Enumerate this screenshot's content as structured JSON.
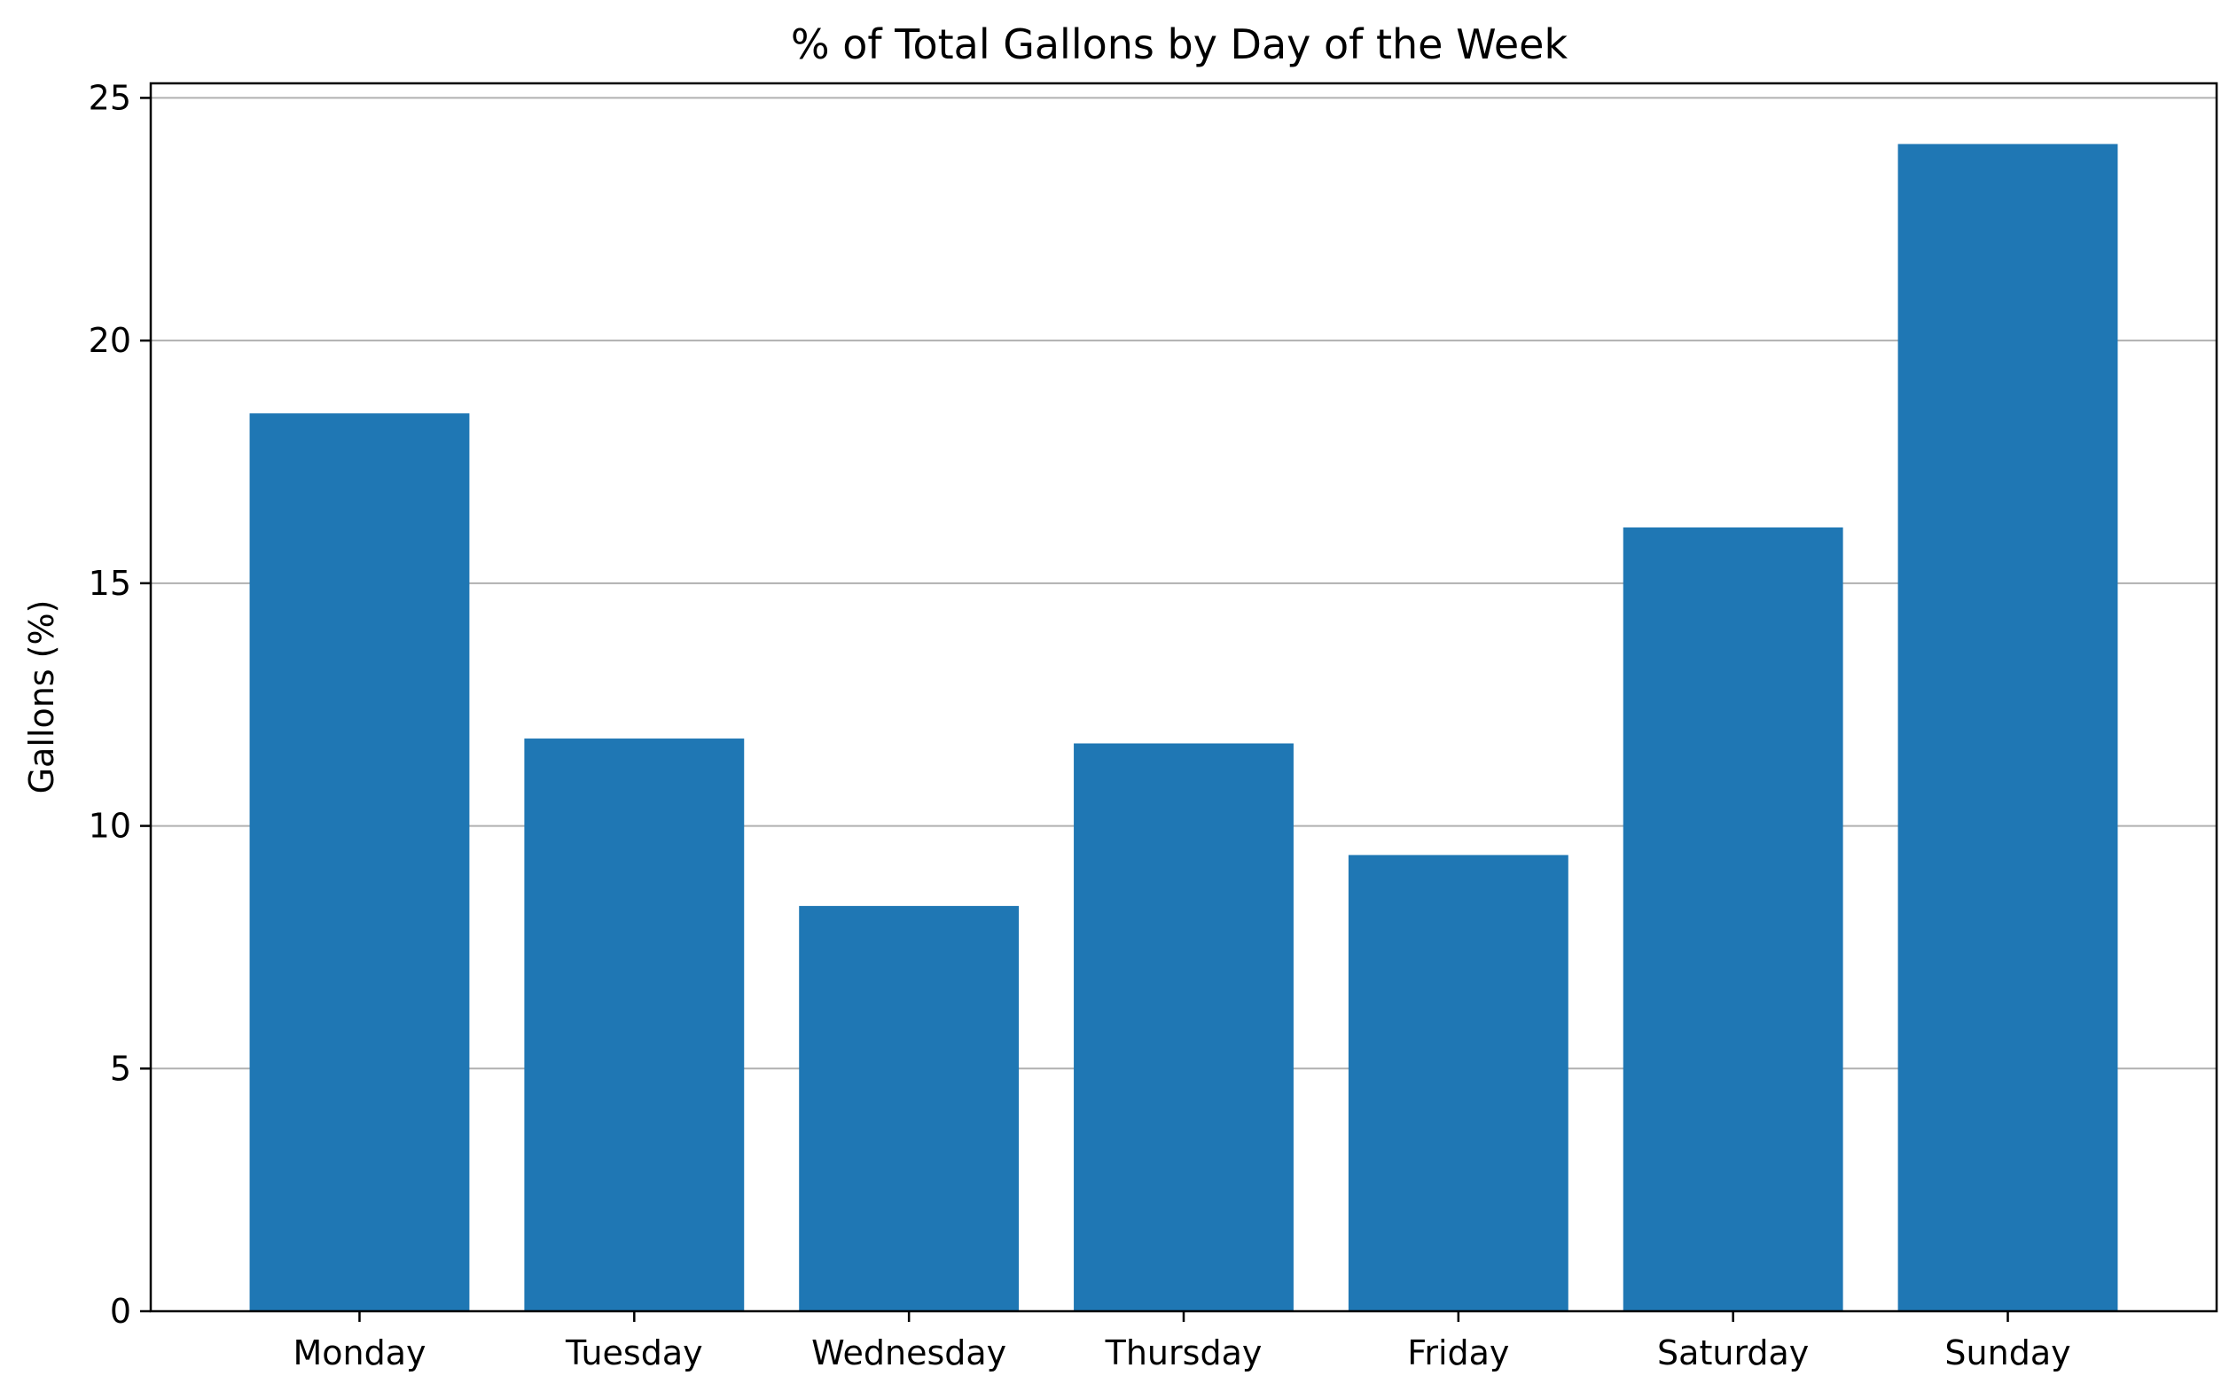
{
  "chart_data": {
    "type": "bar",
    "title": "% of Total Gallons by Day of the Week",
    "xlabel": "",
    "ylabel": "Gallons (%)",
    "categories": [
      "Monday",
      "Tuesday",
      "Wednesday",
      "Thursday",
      "Friday",
      "Saturday",
      "Sunday"
    ],
    "values": [
      18.5,
      11.8,
      8.35,
      11.7,
      9.4,
      16.15,
      24.05
    ],
    "ylim": [
      0,
      25.3
    ],
    "yticks": [
      0,
      5,
      10,
      15,
      20,
      25
    ],
    "grid": "y",
    "legend": "none",
    "bar_color": "#1f77b4",
    "grid_color": "#b0b0b0"
  }
}
